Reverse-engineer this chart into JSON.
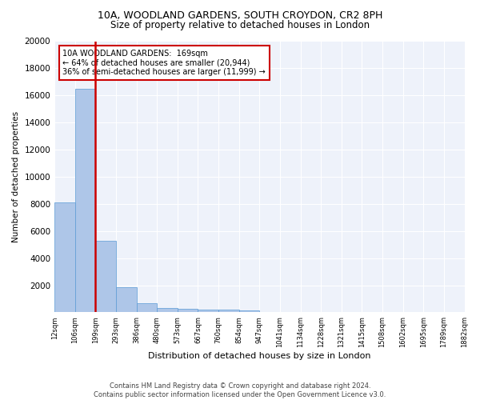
{
  "title_line1": "10A, WOODLAND GARDENS, SOUTH CROYDON, CR2 8PH",
  "title_line2": "Size of property relative to detached houses in London",
  "xlabel": "Distribution of detached houses by size in London",
  "ylabel": "Number of detached properties",
  "annotation_line1": "10A WOODLAND GARDENS:  169sqm",
  "annotation_line2": "← 64% of detached houses are smaller (20,944)",
  "annotation_line3": "36% of semi-detached houses are larger (11,999) →",
  "footer_line1": "Contains HM Land Registry data © Crown copyright and database right 2024.",
  "footer_line2": "Contains public sector information licensed under the Open Government Licence v3.0.",
  "bar_values": [
    8100,
    16500,
    5300,
    1850,
    700,
    350,
    270,
    210,
    180,
    130,
    0,
    0,
    0,
    0,
    0,
    0,
    0,
    0,
    0,
    0
  ],
  "bin_labels": [
    "12sqm",
    "106sqm",
    "199sqm",
    "293sqm",
    "386sqm",
    "480sqm",
    "573sqm",
    "667sqm",
    "760sqm",
    "854sqm",
    "947sqm",
    "1041sqm",
    "1134sqm",
    "1228sqm",
    "1321sqm",
    "1415sqm",
    "1508sqm",
    "1602sqm",
    "1695sqm",
    "1789sqm",
    "1882sqm"
  ],
  "bar_color": "#aec6e8",
  "bar_edge_color": "#5b9bd5",
  "marker_color": "#cc0000",
  "ylim": [
    0,
    20000
  ],
  "yticks": [
    0,
    2000,
    4000,
    6000,
    8000,
    10000,
    12000,
    14000,
    16000,
    18000,
    20000
  ],
  "annotation_box_color": "#cc0000",
  "bg_color": "#eef2fa",
  "grid_color": "#ffffff",
  "title_fontsize": 9,
  "subtitle_fontsize": 8.5
}
